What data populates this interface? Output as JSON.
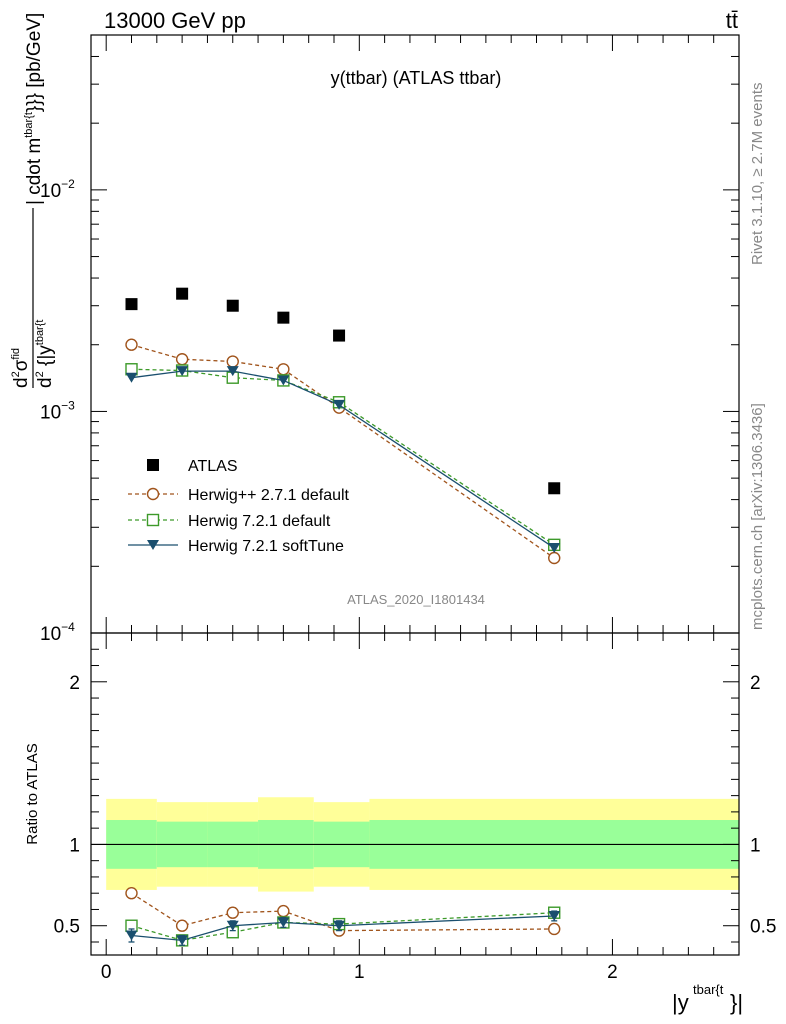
{
  "header": {
    "energy": "13000 GeV pp",
    "process": "tt̄"
  },
  "side_labels": {
    "rivet": "Rivet 3.1.10, ≥ 2.7M events",
    "mcplots": "mcplots.cern.ch [arXiv:1306.3436]"
  },
  "chart_data": [
    {
      "type": "scatter",
      "title": "y(ttbar) (ATLAS ttbar)",
      "xlabel": "|y^{tbar{t}}|",
      "ylabel": "d^2σ^fid / d^2 {|y^{tbar{t}}| cdot m^{tbar{t}}}} [pb/GeV]",
      "ylabel_parts": {
        "frac_top": "d",
        "frac_top_sup": "2",
        "sigma": "σ",
        "sigma_sup": "fid",
        "frac_bot": "d",
        "frac_bot_sup": "2",
        "bot_rest": " {|y",
        "bot_sup": "tbar{t",
        "rest": "| cdot m",
        "rest_sup": "tbar{t",
        "tail": "}}} [pb/GeV]"
      },
      "y_scale": "log",
      "xlim": [
        -0.06,
        2.5
      ],
      "ylim": [
        0.0001,
        0.05
      ],
      "y_ticks": [
        {
          "value": 0.01,
          "base": "10",
          "exp": "−2"
        },
        {
          "value": 0.001,
          "base": "10",
          "exp": "−3"
        },
        {
          "value": 0.0001,
          "base": "10",
          "exp": "−4"
        }
      ],
      "watermark": "ATLAS_2020_I1801434",
      "legend_placement": "center-left",
      "series": [
        {
          "name": "ATLAS",
          "color": "#000000",
          "marker": "square-filled",
          "x": [
            0.1,
            0.3,
            0.5,
            0.7,
            0.92,
            1.77
          ],
          "y": [
            0.00305,
            0.0034,
            0.003,
            0.00265,
            0.0022,
            0.00045
          ]
        },
        {
          "name": "Herwig++ 2.7.1 default",
          "color": "#a0541c",
          "marker": "circle-open",
          "line": "dashed",
          "x": [
            0.1,
            0.3,
            0.5,
            0.7,
            0.92,
            1.77
          ],
          "y": [
            0.002,
            0.00172,
            0.00168,
            0.00155,
            0.00104,
            0.000218
          ]
        },
        {
          "name": "Herwig 7.2.1 default",
          "color": "#3d9a2a",
          "marker": "square-open",
          "line": "dashed",
          "x": [
            0.1,
            0.3,
            0.5,
            0.7,
            0.92,
            1.77
          ],
          "y": [
            0.00155,
            0.00153,
            0.00142,
            0.00138,
            0.0011,
            0.00025
          ]
        },
        {
          "name": "Herwig 7.2.1 softTune",
          "color": "#1a4f6e",
          "marker": "triangle-down-filled",
          "line": "solid",
          "x": [
            0.1,
            0.3,
            0.5,
            0.7,
            0.92,
            1.77
          ],
          "y": [
            0.00142,
            0.00152,
            0.00152,
            0.00138,
            0.00107,
            0.000242
          ]
        }
      ]
    },
    {
      "type": "line",
      "ylabel": "Ratio to ATLAS",
      "xlabel": "|y^{tbar{t}}|",
      "xlim": [
        -0.06,
        2.5
      ],
      "ylim": [
        0.32,
        2.3
      ],
      "x_ticks": [
        "0",
        "1",
        "2"
      ],
      "y_ticks": [
        "0.5",
        "1",
        "2"
      ],
      "x_ticks_values": [
        0,
        1,
        2
      ],
      "y_ticks_values": [
        0.5,
        1,
        2
      ],
      "bins": [
        {
          "lo": 0.0,
          "hi": 0.2,
          "stat": [
            0.85,
            1.15
          ],
          "total": [
            0.72,
            1.28
          ]
        },
        {
          "lo": 0.2,
          "hi": 0.4,
          "stat": [
            0.86,
            1.14
          ],
          "total": [
            0.74,
            1.26
          ]
        },
        {
          "lo": 0.4,
          "hi": 0.6,
          "stat": [
            0.86,
            1.14
          ],
          "total": [
            0.74,
            1.26
          ]
        },
        {
          "lo": 0.6,
          "hi": 0.82,
          "stat": [
            0.85,
            1.15
          ],
          "total": [
            0.71,
            1.29
          ]
        },
        {
          "lo": 0.82,
          "hi": 1.04,
          "stat": [
            0.86,
            1.14
          ],
          "total": [
            0.74,
            1.26
          ]
        },
        {
          "lo": 1.04,
          "hi": 2.5,
          "stat": [
            0.85,
            1.15
          ],
          "total": [
            0.72,
            1.28
          ]
        }
      ],
      "band_colors": {
        "stat": "#99ff99",
        "total": "#ffff99"
      },
      "series": [
        {
          "name": "Herwig++ 2.7.1 default",
          "color": "#a0541c",
          "marker": "circle-open",
          "line": "dashed",
          "x": [
            0.1,
            0.3,
            0.5,
            0.7,
            0.92,
            1.77
          ],
          "y": [
            0.7,
            0.5,
            0.58,
            0.59,
            0.47,
            0.48
          ],
          "err": [
            0.03,
            0.03,
            0.03,
            0.03,
            0.03,
            0.03
          ]
        },
        {
          "name": "Herwig 7.2.1 default",
          "color": "#3d9a2a",
          "marker": "square-open",
          "line": "dashed",
          "x": [
            0.1,
            0.3,
            0.5,
            0.7,
            0.92,
            1.77
          ],
          "y": [
            0.5,
            0.41,
            0.46,
            0.52,
            0.51,
            0.58
          ],
          "err": [
            0.03,
            0.03,
            0.03,
            0.03,
            0.03,
            0.03
          ]
        },
        {
          "name": "Herwig 7.2.1 softTune",
          "color": "#1a4f6e",
          "marker": "triangle-down-filled",
          "line": "solid",
          "x": [
            0.1,
            0.3,
            0.5,
            0.7,
            0.92,
            1.77
          ],
          "y": [
            0.44,
            0.41,
            0.5,
            0.52,
            0.5,
            0.56
          ],
          "err": [
            0.04,
            0.03,
            0.03,
            0.03,
            0.03,
            0.03
          ]
        }
      ]
    }
  ]
}
